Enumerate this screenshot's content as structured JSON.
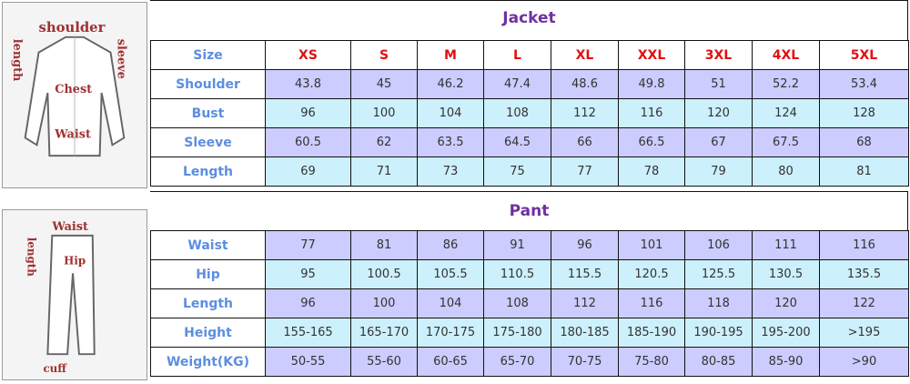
{
  "images": {
    "jacket_labels": [
      "shoulder",
      "length",
      "sleeve",
      "Chest",
      "Waist"
    ],
    "pant_labels": [
      "Waist",
      "length",
      "Hip",
      "cuff"
    ]
  },
  "jacket": {
    "title": "Jacket",
    "header": [
      "Size",
      "XS",
      "S",
      "M",
      "L",
      "XL",
      "XXL",
      "3XL",
      "4XL",
      "5XL"
    ],
    "rows": [
      {
        "label": "Shoulder",
        "values": [
          "43.8",
          "45",
          "46.2",
          "47.4",
          "48.6",
          "49.8",
          "51",
          "52.2",
          "53.4"
        ]
      },
      {
        "label": "Bust",
        "values": [
          "96",
          "100",
          "104",
          "108",
          "112",
          "116",
          "120",
          "124",
          "128"
        ]
      },
      {
        "label": "Sleeve",
        "values": [
          "60.5",
          "62",
          "63.5",
          "64.5",
          "66",
          "66.5",
          "67",
          "67.5",
          "68"
        ]
      },
      {
        "label": "Length",
        "values": [
          "69",
          "71",
          "73",
          "75",
          "77",
          "78",
          "79",
          "80",
          "81"
        ]
      }
    ]
  },
  "pant": {
    "title": "Pant",
    "rows": [
      {
        "label": "Waist",
        "values": [
          "77",
          "81",
          "86",
          "91",
          "96",
          "101",
          "106",
          "111",
          "116"
        ]
      },
      {
        "label": "Hip",
        "values": [
          "95",
          "100.5",
          "105.5",
          "110.5",
          "115.5",
          "120.5",
          "125.5",
          "130.5",
          "135.5"
        ]
      },
      {
        "label": "Length",
        "values": [
          "96",
          "100",
          "104",
          "108",
          "112",
          "116",
          "118",
          "120",
          "122"
        ]
      },
      {
        "label": "Height",
        "values": [
          "155-165",
          "165-170",
          "170-175",
          "175-180",
          "180-185",
          "185-190",
          "190-195",
          "195-200",
          ">195"
        ]
      },
      {
        "label": "Weight(KG)",
        "values": [
          "50-55",
          "55-60",
          "60-65",
          "65-70",
          "70-75",
          "75-80",
          "80-85",
          "85-90",
          ">90"
        ]
      }
    ]
  },
  "colors": {
    "title": "#7030a0",
    "label": "#5b8ee0",
    "size": "#e01010",
    "row_a": "#ccccff",
    "row_b": "#ccf0fc"
  }
}
